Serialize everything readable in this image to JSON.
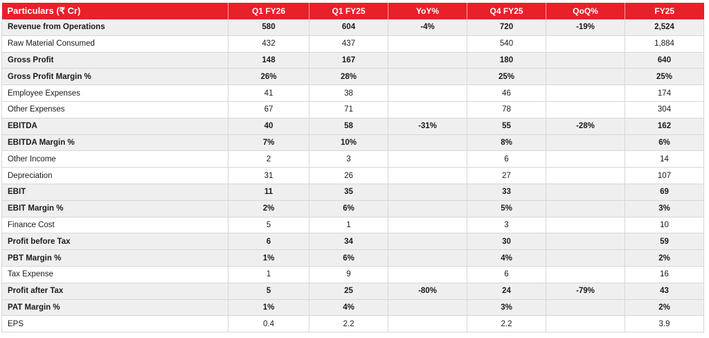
{
  "header": [
    "Particulars (₹ Cr)",
    "Q1 FY26",
    "Q1 FY25",
    "YoY%",
    "Q4 FY25",
    "QoQ%",
    "FY25"
  ],
  "rows": [
    {
      "bold": true,
      "cells": [
        "Revenue from Operations",
        "580",
        "604",
        "-4%",
        "720",
        "-19%",
        "2,524"
      ]
    },
    {
      "bold": false,
      "cells": [
        "Raw Material Consumed",
        "432",
        "437",
        "",
        "540",
        "",
        "1,884"
      ]
    },
    {
      "bold": true,
      "cells": [
        "Gross Profit",
        "148",
        "167",
        "",
        "180",
        "",
        "640"
      ]
    },
    {
      "bold": true,
      "cells": [
        "Gross Profit Margin %",
        "26%",
        "28%",
        "",
        "25%",
        "",
        "25%"
      ]
    },
    {
      "bold": false,
      "cells": [
        "Employee Expenses",
        "41",
        "38",
        "",
        "46",
        "",
        "174"
      ]
    },
    {
      "bold": false,
      "cells": [
        "Other Expenses",
        "67",
        "71",
        "",
        "78",
        "",
        "304"
      ]
    },
    {
      "bold": true,
      "cells": [
        "EBITDA",
        "40",
        "58",
        "-31%",
        "55",
        "-28%",
        "162"
      ]
    },
    {
      "bold": true,
      "cells": [
        "EBITDA Margin %",
        "7%",
        "10%",
        "",
        "8%",
        "",
        "6%"
      ]
    },
    {
      "bold": false,
      "cells": [
        "Other Income",
        "2",
        "3",
        "",
        "6",
        "",
        "14"
      ]
    },
    {
      "bold": false,
      "cells": [
        "Depreciation",
        "31",
        "26",
        "",
        "27",
        "",
        "107"
      ]
    },
    {
      "bold": true,
      "cells": [
        "EBIT",
        "11",
        "35",
        "",
        "33",
        "",
        "69"
      ]
    },
    {
      "bold": true,
      "cells": [
        "EBIT Margin %",
        "2%",
        "6%",
        "",
        "5%",
        "",
        "3%"
      ]
    },
    {
      "bold": false,
      "cells": [
        "Finance Cost",
        "5",
        "1",
        "",
        "3",
        "",
        "10"
      ]
    },
    {
      "bold": true,
      "cells": [
        "Profit before Tax",
        "6",
        "34",
        "",
        "30",
        "",
        "59"
      ]
    },
    {
      "bold": true,
      "cells": [
        "PBT Margin %",
        "1%",
        "6%",
        "",
        "4%",
        "",
        "2%"
      ]
    },
    {
      "bold": false,
      "cells": [
        "Tax Expense",
        "1",
        "9",
        "",
        "6",
        "",
        "16"
      ]
    },
    {
      "bold": true,
      "cells": [
        "Profit after Tax",
        "5",
        "25",
        "-80%",
        "24",
        "-79%",
        "43"
      ]
    },
    {
      "bold": true,
      "cells": [
        "PAT Margin %",
        "1%",
        "4%",
        "",
        "3%",
        "",
        "2%"
      ]
    },
    {
      "bold": false,
      "cells": [
        "EPS",
        "0.4",
        "2.2",
        "",
        "2.2",
        "",
        "3.9"
      ]
    }
  ],
  "colors": {
    "header_bg": "#e8202a",
    "header_text": "#ffffff",
    "bold_row_bg": "#efefef"
  }
}
